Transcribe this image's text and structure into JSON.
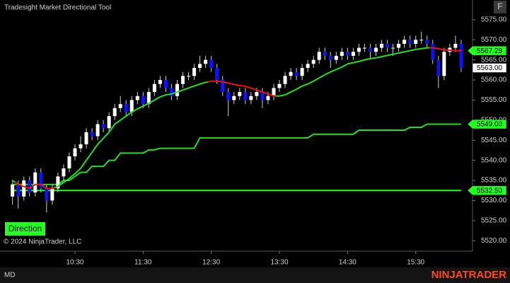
{
  "chart_data": {
    "type": "candlestick",
    "title": "Tradesight Market Directional Tool",
    "x": [
      575,
      580,
      585,
      590,
      595,
      600,
      605,
      610,
      615,
      620,
      625,
      630,
      635,
      640,
      645,
      650,
      655,
      660,
      665,
      670,
      675,
      680,
      685,
      690,
      695,
      700,
      705,
      710,
      715,
      720,
      725,
      730,
      735,
      740,
      745,
      750,
      755,
      760,
      765,
      770,
      775,
      780,
      785,
      790,
      795,
      800,
      805,
      810,
      815,
      820,
      825,
      830,
      835,
      840,
      845,
      850,
      855,
      860,
      865,
      870,
      875,
      880,
      885,
      890,
      895,
      900,
      905,
      910,
      915,
      920,
      925,
      930,
      935,
      940,
      945,
      950,
      955,
      960,
      965,
      970
    ],
    "open": [
      5531,
      5534,
      5531,
      5535,
      5532,
      5537,
      5533,
      5530,
      5533,
      5536,
      5538,
      5541,
      5543,
      5544,
      5547,
      5546,
      5549,
      5548,
      5551,
      5553,
      5554,
      5552,
      5555,
      5556,
      5554,
      5557,
      5559,
      5560,
      5558,
      5556,
      5559,
      5561,
      5561,
      5563,
      5564,
      5565,
      5563,
      5560,
      5557,
      5555,
      5556,
      5557,
      5555,
      5556,
      5557,
      5555,
      5556,
      5558,
      5559,
      5561,
      5562,
      5561,
      5563,
      5564,
      5565,
      5567,
      5566,
      5565,
      5566,
      5567,
      5566,
      5567,
      5568,
      5568,
      5567,
      5568,
      5569,
      5568,
      5568,
      5569,
      5570,
      5569,
      5570,
      5570,
      5569,
      5565,
      5561,
      5567,
      5568,
      5569
    ],
    "high": [
      5535,
      5535,
      5536,
      5536,
      5538,
      5538,
      5534,
      5534,
      5537,
      5539,
      5542,
      5544,
      5546,
      5548,
      5548,
      5550,
      5550,
      5552,
      5554,
      5556,
      5555,
      5556,
      5557,
      5557,
      5558,
      5560,
      5561,
      5561,
      5559,
      5560,
      5562,
      5562,
      5564,
      5566,
      5566,
      5566,
      5564,
      5561,
      5558,
      5557,
      5558,
      5558,
      5557,
      5558,
      5558,
      5557,
      5559,
      5560,
      5562,
      5563,
      5563,
      5564,
      5565,
      5566,
      5568,
      5568,
      5567,
      5567,
      5568,
      5568,
      5568,
      5569,
      5569,
      5569,
      5569,
      5570,
      5570,
      5569,
      5570,
      5571,
      5571,
      5571,
      5572,
      5571,
      5570,
      5566,
      5568,
      5569,
      5571,
      5570
    ],
    "low": [
      5529,
      5528,
      5530,
      5531,
      5531,
      5532,
      5527,
      5529,
      5532,
      5535,
      5537,
      5540,
      5542,
      5543,
      5545,
      5545,
      5547,
      5547,
      5550,
      5552,
      5551,
      5551,
      5554,
      5553,
      5553,
      5556,
      5558,
      5557,
      5555,
      5555,
      5558,
      5560,
      5560,
      5562,
      5563,
      5562,
      5559,
      5556,
      5551,
      5554,
      5555,
      5554,
      5554,
      5555,
      5553,
      5554,
      5555,
      5557,
      5558,
      5560,
      5560,
      5560,
      5562,
      5563,
      5564,
      5565,
      5563,
      5564,
      5565,
      5565,
      5565,
      5566,
      5567,
      5565,
      5566,
      5567,
      5567,
      5566,
      5567,
      5568,
      5568,
      5568,
      5569,
      5568,
      5564,
      5558,
      5560,
      5566,
      5567,
      5562
    ],
    "close": [
      5534,
      5531,
      5535,
      5532,
      5537,
      5533,
      5530,
      5533,
      5536,
      5538,
      5541,
      5543,
      5544,
      5547,
      5546,
      5549,
      5548,
      5551,
      5553,
      5554,
      5552,
      5555,
      5556,
      5554,
      5557,
      5559,
      5560,
      5558,
      5556,
      5559,
      5561,
      5561,
      5563,
      5564,
      5565,
      5563,
      5560,
      5557,
      5555,
      5556,
      5557,
      5555,
      5556,
      5557,
      5555,
      5556,
      5558,
      5559,
      5561,
      5562,
      5561,
      5563,
      5564,
      5565,
      5567,
      5566,
      5565,
      5566,
      5567,
      5566,
      5567,
      5568,
      5568,
      5567,
      5568,
      5569,
      5568,
      5568,
      5569,
      5570,
      5569,
      5570,
      5570,
      5569,
      5565,
      5561,
      5567,
      5568,
      5569,
      5563
    ],
    "up_color": "#ffffff",
    "down_color": "#1010ff",
    "wick_color": "#d0d0d0",
    "fast_line": {
      "values": [
        5535,
        5534,
        5533.5,
        5533,
        5534,
        5534,
        5533,
        5533,
        5533.5,
        5534.5,
        5535.5,
        5536.7,
        5538,
        5540,
        5542,
        5544,
        5545.5,
        5547,
        5549,
        5550,
        5551,
        5552,
        5552.8,
        5553.5,
        5554.2,
        5555,
        5555.8,
        5556.3,
        5556.5,
        5557,
        5557.5,
        5558,
        5558.5,
        5559,
        5559.4,
        5559.7,
        5559.7,
        5559.5,
        5559.2,
        5558.9,
        5558.6,
        5558.4,
        5558,
        5557.5,
        5557,
        5556.5,
        5556,
        5556,
        5556.3,
        5557,
        5557.7,
        5558.5,
        5559,
        5559.7,
        5560.5,
        5561.3,
        5562,
        5562.6,
        5563.2,
        5564,
        5564.3,
        5564.6,
        5565,
        5565.3,
        5565.5,
        5565.8,
        5566.1,
        5566.4,
        5566.7,
        5567,
        5567.3,
        5567.6,
        5567.8,
        5568,
        5568,
        5567.8,
        5567.5,
        5567.4,
        5567.3,
        5567.28
      ],
      "colors": [
        "#22dd22",
        "#ee1111",
        "#ee1111",
        "#ee1111",
        "#ee1111",
        "#ee1111",
        "#ee1111",
        "#ee1111",
        "#22dd22",
        "#22dd22",
        "#22dd22",
        "#22dd22",
        "#22dd22",
        "#22dd22",
        "#22dd22",
        "#22dd22",
        "#22dd22",
        "#22dd22",
        "#22dd22",
        "#22dd22",
        "#22dd22",
        "#22dd22",
        "#22dd22",
        "#22dd22",
        "#22dd22",
        "#22dd22",
        "#22dd22",
        "#22dd22",
        "#22dd22",
        "#22dd22",
        "#22dd22",
        "#22dd22",
        "#22dd22",
        "#22dd22",
        "#22dd22",
        "#ee1111",
        "#ee1111",
        "#ee1111",
        "#ee1111",
        "#ee1111",
        "#ee1111",
        "#ee1111",
        "#ee1111",
        "#ee1111",
        "#ee1111",
        "#ee1111",
        "#ee1111",
        "#22dd22",
        "#22dd22",
        "#22dd22",
        "#22dd22",
        "#22dd22",
        "#22dd22",
        "#22dd22",
        "#22dd22",
        "#22dd22",
        "#22dd22",
        "#22dd22",
        "#22dd22",
        "#22dd22",
        "#22dd22",
        "#22dd22",
        "#22dd22",
        "#22dd22",
        "#22dd22",
        "#22dd22",
        "#22dd22",
        "#22dd22",
        "#22dd22",
        "#22dd22",
        "#22dd22",
        "#22dd22",
        "#22dd22",
        "#22dd22",
        "#ee1111",
        "#ee1111",
        "#ee1111",
        "#ee1111",
        "#ee1111",
        "#ee1111"
      ]
    },
    "slow_line": {
      "color": "#22dd22",
      "values": [
        5534,
        5534,
        5534,
        5534,
        5534,
        5534,
        5534,
        5534,
        5534,
        5535,
        5535,
        5536,
        5537,
        5537,
        5538.5,
        5538.5,
        5538.5,
        5540,
        5540,
        5541.8,
        5541.8,
        5541.8,
        5541.8,
        5541.8,
        5542.6,
        5542.6,
        5543,
        5543,
        5543,
        5543,
        5543,
        5543,
        5543,
        5545.6,
        5545.6,
        5545.6,
        5545.6,
        5545.6,
        5545.6,
        5545.6,
        5545.6,
        5545.6,
        5545.6,
        5545.6,
        5545.6,
        5545.6,
        5545.6,
        5545.6,
        5545.6,
        5545.6,
        5545.6,
        5545.6,
        5545.6,
        5546.5,
        5546.5,
        5546.5,
        5546.5,
        5546.5,
        5546.5,
        5546.5,
        5546.5,
        5547.5,
        5547.5,
        5547.5,
        5547.5,
        5547.5,
        5547.5,
        5547.5,
        5547.5,
        5547.5,
        5548.2,
        5548.2,
        5548.2,
        5549,
        5549,
        5549,
        5549,
        5549,
        5549,
        5549
      ]
    },
    "markers": [
      {
        "value": 5567.28,
        "label": "5567.28",
        "color": "#22ff22",
        "shape": "arrow",
        "hline": false
      },
      {
        "value": 5563,
        "label": "5563.00",
        "color": "#ffffff",
        "shape": "box",
        "hline": false
      },
      {
        "value": 5549,
        "label": "5549.00",
        "color": "#22ff22",
        "shape": "arrow",
        "hline": false
      },
      {
        "value": 5532.5,
        "label": "5532.50",
        "color": "#22ff22",
        "shape": "arrow",
        "hline": true
      }
    ],
    "xlim": [
      564,
      980
    ],
    "xticks": [
      {
        "value": 630,
        "label": "10:30"
      },
      {
        "value": 690,
        "label": "11:30"
      },
      {
        "value": 750,
        "label": "12:30"
      },
      {
        "value": 810,
        "label": "13:30"
      },
      {
        "value": 870,
        "label": "14:30"
      },
      {
        "value": 930,
        "label": "15:30"
      }
    ],
    "ylim": [
      5517.4,
      5579.9
    ],
    "yticks": [
      {
        "value": 5520,
        "label": "5520.00"
      },
      {
        "value": 5525,
        "label": "5525.00"
      },
      {
        "value": 5530,
        "label": "5530.00"
      },
      {
        "value": 5535,
        "label": "5535.00"
      },
      {
        "value": 5540,
        "label": "5540.00"
      },
      {
        "value": 5545,
        "label": "5545.00"
      },
      {
        "value": 5550,
        "label": "5550.00"
      },
      {
        "value": 5555,
        "label": "5555.00"
      },
      {
        "value": 5560,
        "label": "5560.00"
      },
      {
        "value": 5565,
        "label": "5565.00"
      },
      {
        "value": 5570,
        "label": "5570.00"
      },
      {
        "value": 5575,
        "label": "5575.00"
      }
    ]
  },
  "f_button": "F",
  "direction_button": "Direction",
  "copyright": "© 2024 NinjaTrader, LLC",
  "status": "MD",
  "logo": "NINJATRADER"
}
